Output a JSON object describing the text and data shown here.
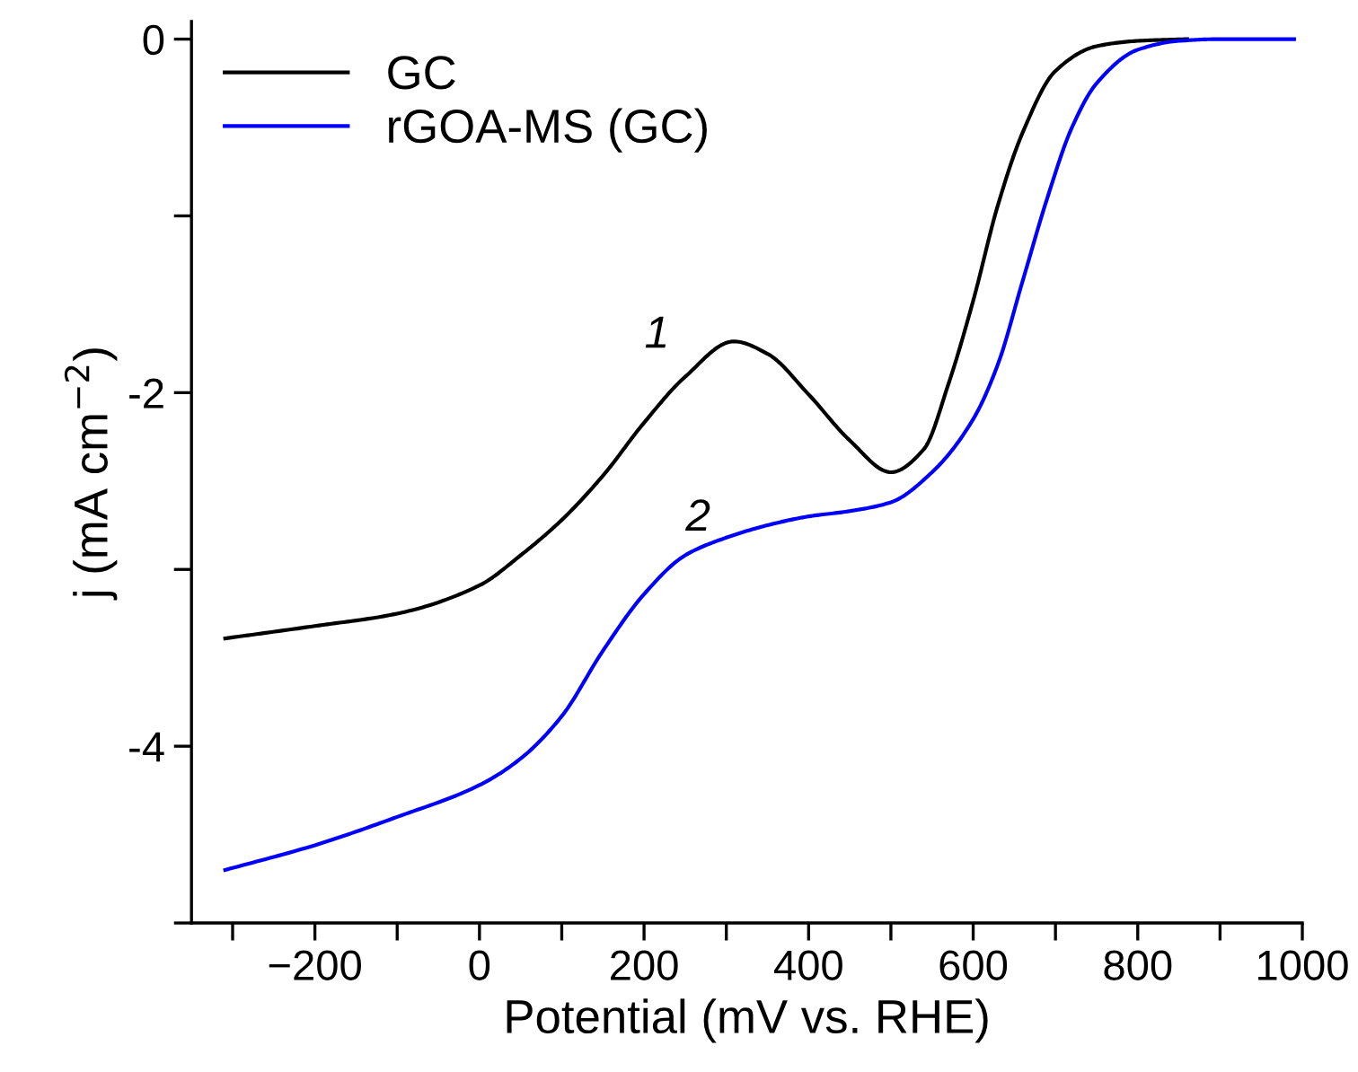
{
  "chart_data": {
    "type": "line",
    "xlabel": "Potential (mV vs. RHE)",
    "ylabel": "j (mA cm$^{−2}$)",
    "xlim": [
      -350,
      1000
    ],
    "ylim": [
      -5,
      0.1
    ],
    "xticks": [
      {
        "value": -300,
        "label": null
      },
      {
        "value": -200,
        "label": "−200"
      },
      {
        "value": -100,
        "label": null
      },
      0,
      {
        "value": 100,
        "label": null
      },
      200,
      {
        "value": 300,
        "label": null
      },
      400,
      {
        "value": 500,
        "label": null
      },
      600,
      {
        "value": 700,
        "label": null
      },
      800,
      {
        "value": 900,
        "label": null
      },
      1000
    ],
    "yticks": [
      0,
      {
        "value": -1,
        "label": null
      },
      {
        "value": -2,
        "label": "-2"
      },
      {
        "value": -3,
        "label": null
      },
      {
        "value": -4,
        "label": "-4"
      },
      {
        "value": -5,
        "label": null
      }
    ],
    "grid": false,
    "legend": "top left",
    "marker": "none",
    "line_style": "solid",
    "annotations": [
      "1",
      "2"
    ],
    "series": [
      {
        "name": "GC",
        "color": "#000000",
        "x": [
          -309,
          -200,
          -100,
          0,
          50,
          100,
          150,
          200,
          250,
          309,
          350,
          400,
          450,
          500,
          540,
          570,
          600,
          630,
          660,
          700,
          750,
          800,
          860
        ],
        "values": [
          -3.39,
          -3.32,
          -3.25,
          -3.09,
          -2.92,
          -2.72,
          -2.47,
          -2.17,
          -1.91,
          -1.71,
          -1.78,
          -2.01,
          -2.27,
          -2.45,
          -2.32,
          -1.95,
          -1.48,
          -0.94,
          -0.53,
          -0.18,
          -0.04,
          -0.01,
          0
        ]
      },
      {
        "name": "rGOA-MS (GC)",
        "color": "#0000ff",
        "x": [
          -309,
          -200,
          -100,
          0,
          50,
          100,
          150,
          200,
          250,
          300,
          350,
          400,
          450,
          500,
          550,
          600,
          630,
          660,
          690,
          720,
          750,
          800,
          850,
          900,
          990
        ],
        "values": [
          -4.7,
          -4.56,
          -4.4,
          -4.22,
          -4.07,
          -3.83,
          -3.46,
          -3.14,
          -2.92,
          -2.82,
          -2.75,
          -2.7,
          -2.67,
          -2.62,
          -2.45,
          -2.15,
          -1.84,
          -1.37,
          -0.9,
          -0.5,
          -0.25,
          -0.06,
          -0.01,
          0,
          0
        ]
      }
    ]
  }
}
